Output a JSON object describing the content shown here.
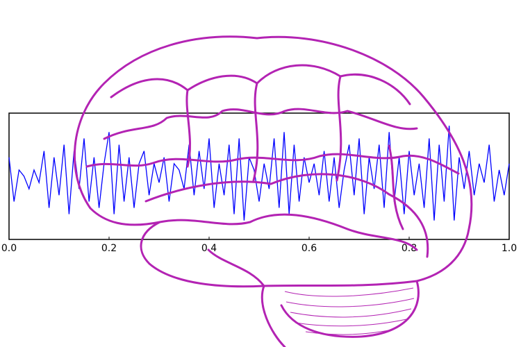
{
  "chart_data": {
    "type": "line",
    "x": [
      0,
      0.01,
      0.02,
      0.03,
      0.04,
      0.05,
      0.06,
      0.07,
      0.08,
      0.09,
      0.1,
      0.11,
      0.12,
      0.13,
      0.14,
      0.15,
      0.16,
      0.17,
      0.18,
      0.19,
      0.2,
      0.21,
      0.22,
      0.23,
      0.24,
      0.25,
      0.26,
      0.27,
      0.28,
      0.29,
      0.3,
      0.31,
      0.32,
      0.33,
      0.34,
      0.35,
      0.36,
      0.37,
      0.38,
      0.39,
      0.4,
      0.41,
      0.42,
      0.43,
      0.44,
      0.45,
      0.46,
      0.47,
      0.48,
      0.49,
      0.5,
      0.51,
      0.52,
      0.53,
      0.54,
      0.55,
      0.56,
      0.57,
      0.58,
      0.59,
      0.6,
      0.61,
      0.62,
      0.63,
      0.64,
      0.65,
      0.66,
      0.67,
      0.68,
      0.69,
      0.7,
      0.71,
      0.72,
      0.73,
      0.74,
      0.75,
      0.76,
      0.77,
      0.78,
      0.79,
      0.8,
      0.81,
      0.82,
      0.83,
      0.84,
      0.85,
      0.86,
      0.87,
      0.88,
      0.89,
      0.9,
      0.91,
      0.92,
      0.93,
      0.94,
      0.95,
      0.96,
      0.97,
      0.98,
      0.99,
      1
    ],
    "series": [
      {
        "color": "#0000ff",
        "values": [
          0.3,
          -0.4,
          0.1,
          0.0,
          -0.2,
          0.1,
          -0.1,
          0.4,
          -0.5,
          0.3,
          -0.3,
          0.5,
          -0.6,
          0.4,
          -0.2,
          0.6,
          -0.4,
          0.3,
          -0.5,
          0.2,
          0.7,
          -0.6,
          0.5,
          -0.4,
          0.3,
          -0.5,
          0.2,
          0.4,
          -0.3,
          0.2,
          -0.1,
          0.3,
          -0.4,
          0.2,
          0.1,
          -0.2,
          0.5,
          -0.3,
          0.4,
          -0.2,
          0.6,
          -0.5,
          0.2,
          -0.3,
          0.5,
          -0.6,
          0.6,
          -0.7,
          0.3,
          0.1,
          -0.4,
          0.2,
          -0.2,
          0.6,
          -0.5,
          0.7,
          -0.6,
          0.5,
          -0.4,
          0.3,
          -0.1,
          0.2,
          -0.3,
          0.4,
          -0.4,
          0.3,
          -0.5,
          0.1,
          0.5,
          -0.3,
          0.6,
          -0.6,
          0.3,
          -0.2,
          0.5,
          -0.5,
          0.7,
          -0.4,
          0.3,
          -0.6,
          0.4,
          -0.3,
          0.2,
          -0.5,
          0.6,
          -0.7,
          0.5,
          -0.4,
          0.8,
          -0.7,
          0.3,
          -0.2,
          0.4,
          -0.3,
          0.2,
          -0.1,
          0.5,
          -0.4,
          0.1,
          -0.3,
          0.2
        ]
      }
    ],
    "xlim": [
      0,
      1
    ],
    "xticks": [
      {
        "value": 0,
        "label": "0.0"
      },
      0.2,
      0.4,
      0.6,
      0.8,
      {
        "value": 1,
        "label": "1.0"
      }
    ],
    "ylim": [
      -1,
      1
    ]
  }
}
